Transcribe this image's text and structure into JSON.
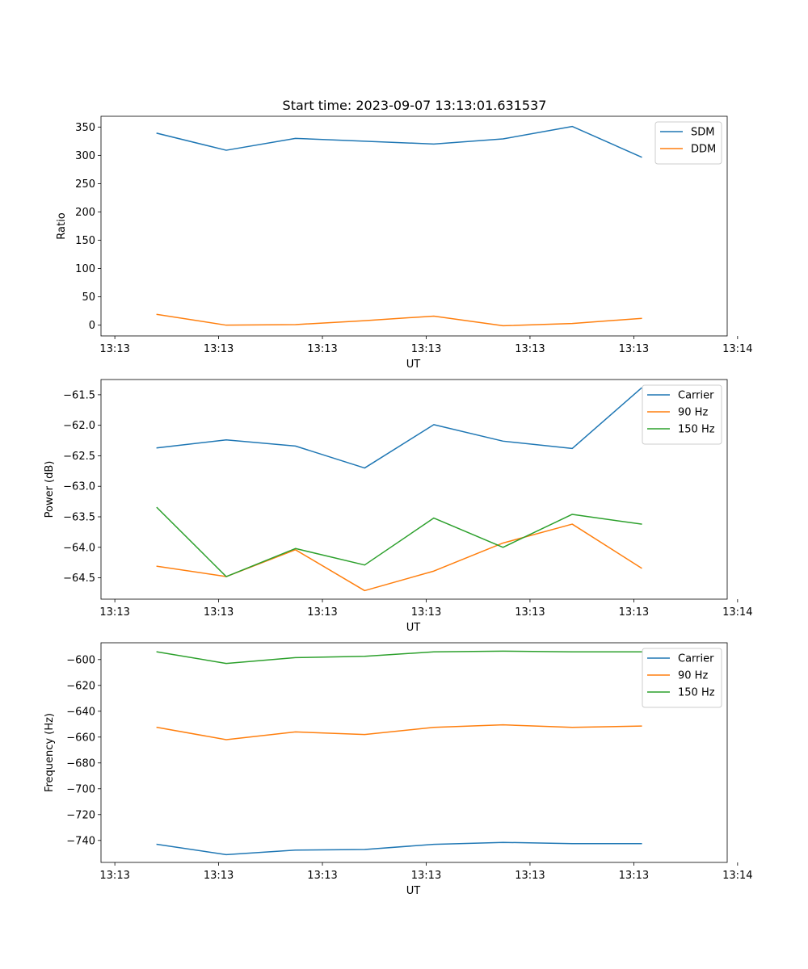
{
  "figure_title": "Start time: 2023-09-07 13:13:01.631537",
  "chart_data": [
    {
      "type": "line",
      "title": "Start time: 2023-09-07 13:13:01.631537",
      "xlabel": "UT",
      "ylabel": "Ratio",
      "x": [
        1,
        2,
        3,
        4,
        5,
        6,
        7,
        8
      ],
      "xlim": [
        0.19,
        9.24
      ],
      "xticks": [
        0.39,
        1.89,
        3.39,
        4.89,
        6.39,
        7.89,
        9.39
      ],
      "xtick_labels": [
        "13:13",
        "13:13",
        "13:13",
        "13:13",
        "13:13",
        "13:13",
        "13:14"
      ],
      "ylim": [
        -19,
        369
      ],
      "yticks": [
        0,
        50,
        100,
        150,
        200,
        250,
        300,
        350
      ],
      "legend_position": "top-right",
      "series": [
        {
          "name": "SDM",
          "color": "#1f77b4",
          "values": [
            339,
            309,
            330,
            325,
            320,
            329,
            351,
            297
          ]
        },
        {
          "name": "DDM",
          "color": "#ff7f0e",
          "values": [
            19,
            0,
            1,
            8,
            16,
            -1,
            3,
            12
          ]
        }
      ]
    },
    {
      "type": "line",
      "title": "",
      "xlabel": "UT",
      "ylabel": "Power (dB)",
      "x": [
        1,
        2,
        3,
        4,
        5,
        6,
        7,
        8
      ],
      "xlim": [
        0.19,
        9.24
      ],
      "xticks": [
        0.39,
        1.89,
        3.39,
        4.89,
        6.39,
        7.89,
        9.39
      ],
      "xtick_labels": [
        "13:13",
        "13:13",
        "13:13",
        "13:13",
        "13:13",
        "13:13",
        "13:14"
      ],
      "ylim": [
        -64.85,
        -61.25
      ],
      "yticks": [
        -64.5,
        -64.0,
        -63.5,
        -63.0,
        -62.5,
        -62.0,
        -61.5
      ],
      "ytick_labels": [
        "−64.5",
        "−64.0",
        "−63.5",
        "−63.0",
        "−62.5",
        "−62.0",
        "−61.5"
      ],
      "legend_position": "top-right",
      "series": [
        {
          "name": "Carrier",
          "color": "#1f77b4",
          "values": [
            -62.37,
            -62.24,
            -62.34,
            -62.7,
            -61.99,
            -62.26,
            -62.38,
            -61.39
          ]
        },
        {
          "name": "90 Hz",
          "color": "#ff7f0e",
          "values": [
            -64.31,
            -64.48,
            -64.04,
            -64.71,
            -64.39,
            -63.93,
            -63.62,
            -64.34
          ]
        },
        {
          "name": "150 Hz",
          "color": "#2ca02c",
          "values": [
            -63.35,
            -64.48,
            -64.02,
            -64.29,
            -63.52,
            -64.0,
            -63.46,
            -63.62
          ]
        }
      ]
    },
    {
      "type": "line",
      "title": "",
      "xlabel": "UT",
      "ylabel": "Frequency (Hz)",
      "x": [
        1,
        2,
        3,
        4,
        5,
        6,
        7,
        8
      ],
      "xlim": [
        0.19,
        9.24
      ],
      "xticks": [
        0.39,
        1.89,
        3.39,
        4.89,
        6.39,
        7.89,
        9.39
      ],
      "xtick_labels": [
        "13:13",
        "13:13",
        "13:13",
        "13:13",
        "13:13",
        "13:13",
        "13:14"
      ],
      "ylim": [
        -757,
        -587
      ],
      "yticks": [
        -740,
        -720,
        -700,
        -680,
        -660,
        -640,
        -620,
        -600
      ],
      "ytick_labels": [
        "−740",
        "−720",
        "−700",
        "−680",
        "−660",
        "−640",
        "−620",
        "−600"
      ],
      "legend_position": "top-right",
      "series": [
        {
          "name": "Carrier",
          "color": "#1f77b4",
          "values": [
            -743,
            -751,
            -747.5,
            -747,
            -743,
            -741.5,
            -742.5,
            -742.5
          ]
        },
        {
          "name": "90 Hz",
          "color": "#ff7f0e",
          "values": [
            -652.5,
            -662,
            -656,
            -658,
            -652.5,
            -650.5,
            -652.5,
            -651.5
          ]
        },
        {
          "name": "150 Hz",
          "color": "#2ca02c",
          "values": [
            -594,
            -603,
            -598.5,
            -597.5,
            -594,
            -593.5,
            -594,
            -594
          ]
        }
      ]
    }
  ]
}
